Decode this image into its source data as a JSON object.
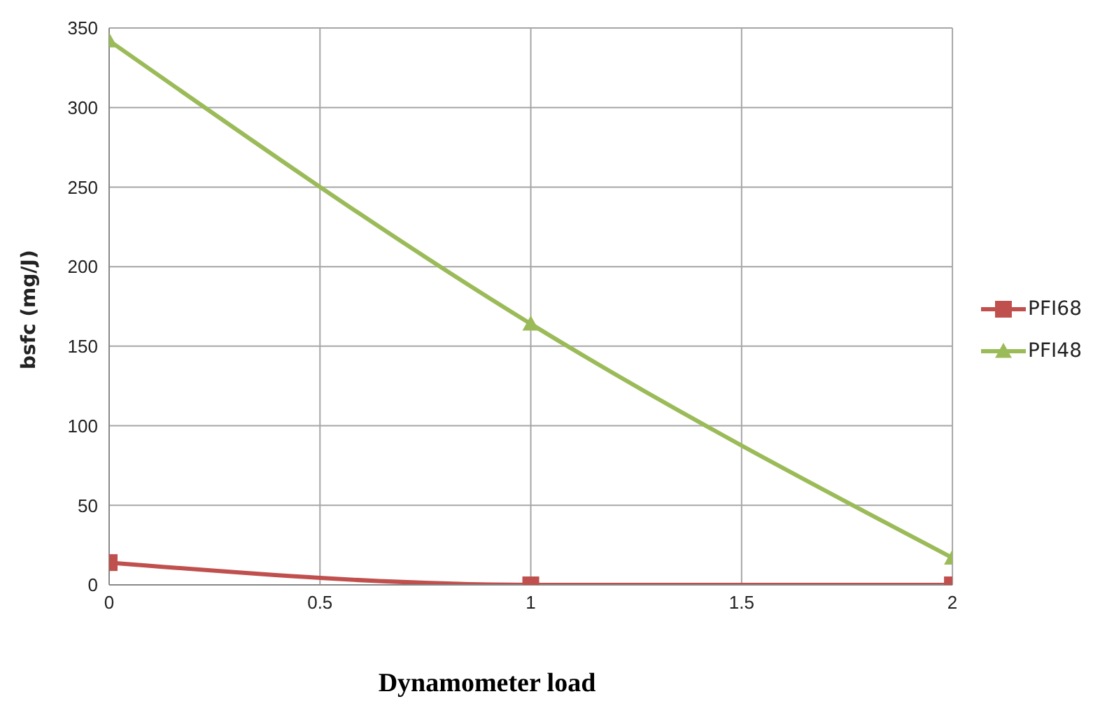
{
  "chart_data": {
    "type": "line",
    "xlabel": "Dynamometer load",
    "ylabel": "bsfc (mg/J)",
    "x": [
      0,
      1,
      2
    ],
    "series": [
      {
        "name": "PFI68",
        "color": "#c0504d",
        "marker": "square",
        "values": [
          14,
          0,
          0
        ]
      },
      {
        "name": "PFI48",
        "color": "#9bbb59",
        "marker": "triangle",
        "values": [
          342,
          164,
          17
        ]
      }
    ],
    "xlim": [
      0,
      2
    ],
    "xticks": [
      0,
      0.5,
      1,
      1.5,
      2
    ],
    "ylim": [
      0,
      350
    ],
    "yticks": [
      0,
      50,
      100,
      150,
      200,
      250,
      300,
      350
    ],
    "grid": true,
    "legend": "right",
    "line_style": "solid"
  }
}
